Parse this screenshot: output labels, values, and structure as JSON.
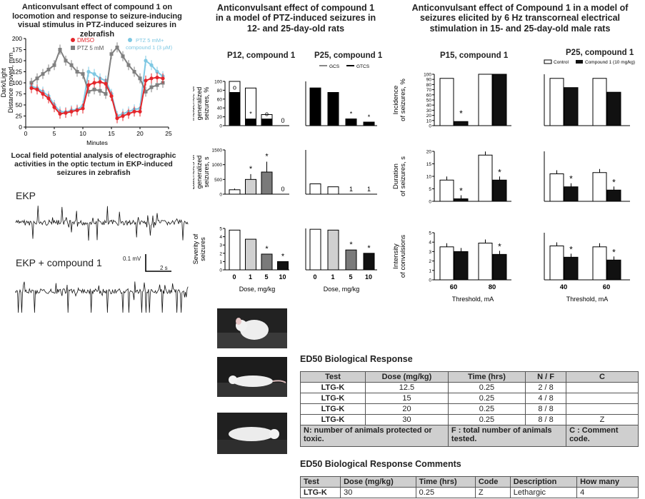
{
  "colors": {
    "dmso": "#e4262b",
    "ptz": "#808080",
    "ptzc": "#7ec8e3",
    "control": "#ffffff",
    "compound": "#111111",
    "grey_light": "#d0d0d0",
    "grey_dark": "#7a7a7a"
  },
  "zebrafish": {
    "title": "Anticonvulsant effect of compound 1 on locomotion and response to seizure-inducing visual stimulus in PTZ-induced seizures in zebrafish",
    "legend": {
      "dmso": "DMSO",
      "ptz": "PTZ 5 mM",
      "ptzc": "PTZ 5 mM+\ncompound 1 (3 μM)"
    }
  },
  "lfp": {
    "title": "Local field potential analysis of electrographic activities in the optic tectum in EKP-induced seizures in zebrafish",
    "trace1_label": "EKP",
    "trace2_label": "EKP + compound 1",
    "scale_v": "0.1 mV",
    "scale_t": "2 s"
  },
  "ptz_rats": {
    "title": "Anticonvulsant effect of compound 1 in a model of PTZ-induced seizures in 12- and 25-day-old rats",
    "p12": "P12, compound 1",
    "p25": "P25, compound 1",
    "legend": {
      "gcs": "GCS",
      "gtcs": "GTCS"
    },
    "ylabels": [
      "Incidence of generalized seizures, %",
      "Latencies of generalized seizures, s",
      "Severity of seizures"
    ],
    "xlabel": "Dose, mg/kg"
  },
  "mes_rats": {
    "title": "Anticonvulsant effect of Compound 1 in a model of seizures elicited by 6 Hz transcorneal electrical stimulation in 15- and 25-day-old male rats",
    "p15": "P15, compound 1",
    "p25": "P25, compound 1",
    "legend": {
      "control": "Control",
      "compound": "Compound 1 (10 mg/kg)"
    },
    "ylabels": [
      "Incidence of seizures, %",
      "Duration of seizures, s",
      "Intensity of convulsions"
    ],
    "xlabel": "Threshold, mA"
  },
  "ed50": {
    "title": "ED50 Biological Response",
    "headers": [
      "Test",
      "Dose (mg/kg)",
      "Time (hrs)",
      "N / F",
      "C"
    ],
    "rows": [
      [
        "LTG-K",
        "12.5",
        "0.25",
        "2 / 8",
        ""
      ],
      [
        "LTG-K",
        "15",
        "0.25",
        "4 / 8",
        ""
      ],
      [
        "LTG-K",
        "20",
        "0.25",
        "8 / 8",
        ""
      ],
      [
        "LTG-K",
        "30",
        "0.25",
        "8 / 8",
        "Z"
      ]
    ],
    "notes": [
      "N: number of animals protected or toxic.",
      "F : total number of animals tested.",
      "C : Comment code."
    ]
  },
  "ed50c": {
    "title": "ED50 Biological Response Comments",
    "headers": [
      "Test",
      "Dose (mg/kg)",
      "Time (hrs)",
      "Code",
      "Description",
      "How many"
    ],
    "rows": [
      [
        "LTG-K",
        "30",
        "0.25",
        "Z",
        "Lethargic",
        "4"
      ]
    ]
  },
  "chart_data": [
    {
      "type": "line",
      "name": "zebrafish locomotion",
      "xlabel": "Minutes",
      "ylabel": "Dark/Light Distance moved, mm",
      "ylim": [
        0,
        200
      ],
      "xlim": [
        0,
        25
      ],
      "xticks": [
        0,
        5,
        10,
        15,
        20,
        25
      ],
      "yticks": [
        0,
        25,
        50,
        75,
        100,
        125,
        150,
        175,
        200
      ],
      "x": [
        1,
        2,
        3,
        4,
        5,
        6,
        7,
        8,
        9,
        10,
        11,
        12,
        13,
        14,
        15,
        16,
        17,
        18,
        19,
        20,
        21,
        22,
        23,
        24
      ],
      "series": [
        {
          "name": "DMSO",
          "values": [
            88,
            85,
            75,
            65,
            45,
            30,
            32,
            35,
            38,
            42,
            95,
            100,
            102,
            98,
            70,
            20,
            25,
            30,
            35,
            35,
            105,
            110,
            112,
            110
          ]
        },
        {
          "name": "PTZ 5 mM",
          "values": [
            100,
            110,
            120,
            130,
            140,
            175,
            150,
            140,
            125,
            120,
            80,
            85,
            82,
            75,
            165,
            180,
            160,
            140,
            125,
            110,
            80,
            90,
            95,
            100
          ]
        },
        {
          "name": "PTZ 5 mM+ compound 1 (3 μM)",
          "values": [
            92,
            88,
            80,
            70,
            50,
            35,
            34,
            38,
            40,
            48,
            125,
            120,
            110,
            105,
            75,
            25,
            30,
            35,
            40,
            42,
            150,
            140,
            125,
            115
          ]
        }
      ]
    },
    {
      "type": "bar",
      "panel": "P12 incidence",
      "categories": [
        "0",
        "1",
        "5",
        "10"
      ],
      "ylim": [
        0,
        100
      ],
      "yticks": [
        0,
        20,
        40,
        60,
        80,
        100
      ],
      "series": [
        {
          "name": "GCS",
          "values": [
            100,
            85,
            25,
            0
          ]
        },
        {
          "name": "GTCS",
          "values": [
            75,
            15,
            15,
            0
          ]
        }
      ],
      "annotations": [
        "o",
        "*",
        "o",
        "0"
      ]
    },
    {
      "type": "bar",
      "panel": "P25 incidence",
      "categories": [
        "0",
        "1",
        "5",
        "10"
      ],
      "ylim": [
        0,
        100
      ],
      "series": [
        {
          "name": "GCS",
          "values": [
            85,
            75,
            15,
            8
          ]
        },
        {
          "name": "GTCS",
          "values": [
            85,
            75,
            15,
            8
          ]
        }
      ],
      "annotations": [
        "",
        "",
        "*",
        "*"
      ]
    },
    {
      "type": "bar",
      "panel": "P12 latency",
      "categories": [
        "0",
        "1",
        "5",
        "10"
      ],
      "ylim": [
        0,
        1500
      ],
      "yticks": [
        0,
        500,
        1000,
        1500
      ],
      "values": [
        150,
        500,
        750,
        0
      ],
      "errors": [
        40,
        180,
        350,
        0
      ],
      "annotations": [
        "",
        "*",
        "*",
        "0"
      ]
    },
    {
      "type": "bar",
      "panel": "P25 latency",
      "categories": [
        "0",
        "1",
        "5",
        "10"
      ],
      "ylim": [
        0,
        1500
      ],
      "values": [
        350,
        250,
        0,
        0
      ],
      "annotations": [
        "",
        "",
        "1",
        "1"
      ]
    },
    {
      "type": "bar",
      "panel": "P12 severity",
      "categories": [
        "0",
        "1",
        "5",
        "10"
      ],
      "ylim": [
        0,
        5
      ],
      "yticks": [
        0,
        1,
        2,
        3,
        4,
        5
      ],
      "values": [
        4.8,
        3.7,
        1.9,
        1.0
      ],
      "annotations": [
        "",
        "",
        "*",
        "*"
      ]
    },
    {
      "type": "bar",
      "panel": "P25 severity",
      "categories": [
        "0",
        "1",
        "5",
        "10"
      ],
      "ylim": [
        0,
        5
      ],
      "values": [
        4.9,
        4.8,
        2.4,
        2.0
      ],
      "annotations": [
        "",
        "",
        "*",
        "*"
      ]
    },
    {
      "type": "bar",
      "panel": "P15 incidence",
      "categories": [
        "60",
        "80"
      ],
      "ylim": [
        0,
        100
      ],
      "yticks": [
        0,
        10,
        20,
        30,
        40,
        50,
        60,
        70,
        80,
        90,
        100
      ],
      "series": [
        {
          "name": "Control",
          "values": [
            92,
            100
          ]
        },
        {
          "name": "Compound 1 (10 mg/kg)",
          "values": [
            8,
            100
          ]
        }
      ]
    },
    {
      "type": "bar",
      "panel": "P25 incidence 6Hz",
      "categories": [
        "40",
        "60"
      ],
      "ylim": [
        0,
        100
      ],
      "series": [
        {
          "name": "Control",
          "values": [
            92,
            92
          ]
        },
        {
          "name": "Compound 1 (10 mg/kg)",
          "values": [
            74,
            65
          ]
        }
      ]
    },
    {
      "type": "bar",
      "panel": "P15 duration",
      "categories": [
        "60",
        "80"
      ],
      "ylim": [
        0,
        20
      ],
      "yticks": [
        0,
        5,
        10,
        15,
        20
      ],
      "series": [
        {
          "name": "Control",
          "values": [
            8.5,
            18.5
          ]
        },
        {
          "name": "Compound 1 (10 mg/kg)",
          "values": [
            1,
            8.5
          ]
        }
      ]
    },
    {
      "type": "bar",
      "panel": "P25 duration",
      "categories": [
        "40",
        "60"
      ],
      "ylim": [
        0,
        20
      ],
      "series": [
        {
          "name": "Control",
          "values": [
            11,
            11.5
          ]
        },
        {
          "name": "Compound 1 (10 mg/kg)",
          "values": [
            5.8,
            4.5
          ]
        }
      ]
    },
    {
      "type": "bar",
      "panel": "P15 intensity",
      "categories": [
        "60",
        "80"
      ],
      "ylim": [
        0,
        5
      ],
      "yticks": [
        0,
        1,
        2,
        3,
        4,
        5
      ],
      "series": [
        {
          "name": "Control",
          "values": [
            3.5,
            3.9
          ]
        },
        {
          "name": "Compound 1 (10 mg/kg)",
          "values": [
            3.0,
            2.7
          ]
        }
      ]
    },
    {
      "type": "bar",
      "panel": "P25 intensity",
      "categories": [
        "40",
        "60"
      ],
      "ylim": [
        0,
        5
      ],
      "series": [
        {
          "name": "Control",
          "values": [
            3.6,
            3.5
          ]
        },
        {
          "name": "Compound 1 (10 mg/kg)",
          "values": [
            2.4,
            2.1
          ]
        }
      ]
    }
  ]
}
